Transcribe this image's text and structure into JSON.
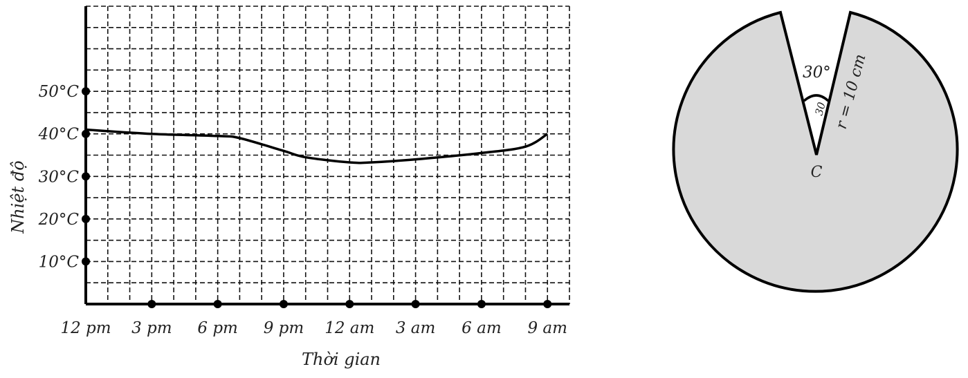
{
  "chart_data": {
    "type": "line",
    "title": "",
    "xlabel": "Thời gian",
    "ylabel": "Nhiệt độ",
    "x_ticks": [
      "12 pm",
      "3 pm",
      "6 pm",
      "9 pm",
      "12 am",
      "3 am",
      "6 am",
      "9 am"
    ],
    "y_ticks": [
      "10°C",
      "20°C",
      "30°C",
      "40°C",
      "50°C"
    ],
    "y_tick_values": [
      10,
      20,
      30,
      40,
      50
    ],
    "xlim": [
      0,
      22
    ],
    "ylim": [
      0,
      70
    ],
    "grid": true,
    "series": [
      {
        "name": "Nhiệt độ",
        "x": [
          0,
          3,
          6,
          7,
          9,
          10,
          12,
          13,
          15,
          18,
          20,
          21
        ],
        "y": [
          41,
          40,
          39.5,
          39,
          36,
          34.5,
          33.3,
          33.3,
          34,
          35.5,
          37,
          40
        ]
      }
    ]
  },
  "figure": {
    "angle_label": "30°",
    "small_angle_label": "30",
    "radius_label": "r = 10 cm",
    "center_label": "C",
    "fill_color": "#d9d9d9",
    "stroke_color": "#000000"
  }
}
